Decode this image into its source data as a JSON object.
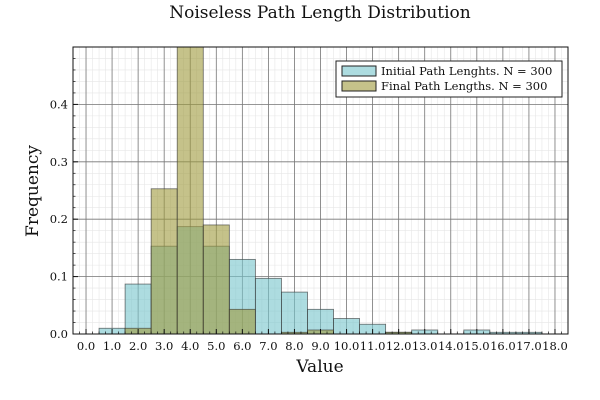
{
  "chart_data": {
    "type": "histogram",
    "title": "Noiseless Path Length Distribution",
    "xlabel": "Value",
    "ylabel": "Frequency",
    "xlim": [
      -0.5,
      18.5
    ],
    "ylim": [
      0,
      0.5
    ],
    "x_ticks": [
      0,
      1,
      2,
      3,
      4,
      5,
      6,
      7,
      8,
      9,
      10,
      11,
      12,
      13,
      14,
      15,
      16,
      17,
      18
    ],
    "x_tick_labels": [
      "0.0",
      "1.0",
      "2.0",
      "3.0",
      "4.0",
      "5.0",
      "6.0",
      "7.0",
      "8.0",
      "9.0",
      "10.0",
      "11.0",
      "12.0",
      "13.0",
      "14.0",
      "15.0",
      "16.0",
      "17.0",
      "18.0"
    ],
    "y_ticks": [
      0,
      0.1,
      0.2,
      0.3,
      0.4
    ],
    "y_tick_labels": [
      "0.0",
      "0.1",
      "0.2",
      "0.3",
      "0.4"
    ],
    "bin_width": 1,
    "grid": true,
    "legend_position": "top-right",
    "series": [
      {
        "name": "Initial Path Lenghts. N = 300",
        "color": "#77c4cc",
        "bins": [
          {
            "start": 0.5,
            "value": 0.01
          },
          {
            "start": 1.5,
            "value": 0.087
          },
          {
            "start": 2.5,
            "value": 0.153
          },
          {
            "start": 3.5,
            "value": 0.187
          },
          {
            "start": 4.5,
            "value": 0.153
          },
          {
            "start": 5.5,
            "value": 0.13
          },
          {
            "start": 6.5,
            "value": 0.097
          },
          {
            "start": 7.5,
            "value": 0.073
          },
          {
            "start": 8.5,
            "value": 0.043
          },
          {
            "start": 9.5,
            "value": 0.027
          },
          {
            "start": 10.5,
            "value": 0.017
          },
          {
            "start": 11.5,
            "value": 0.003
          },
          {
            "start": 12.5,
            "value": 0.007
          },
          {
            "start": 13.5,
            "value": 0.0
          },
          {
            "start": 14.5,
            "value": 0.007
          },
          {
            "start": 15.5,
            "value": 0.003
          },
          {
            "start": 16.5,
            "value": 0.003
          }
        ]
      },
      {
        "name": "Final Path Lengths. N = 300",
        "color": "#9e9a3c",
        "bins": [
          {
            "start": 1.5,
            "value": 0.01
          },
          {
            "start": 2.5,
            "value": 0.253
          },
          {
            "start": 3.5,
            "value": 0.5
          },
          {
            "start": 4.5,
            "value": 0.19
          },
          {
            "start": 5.5,
            "value": 0.043
          },
          {
            "start": 7.5,
            "value": 0.003
          },
          {
            "start": 8.5,
            "value": 0.007
          },
          {
            "start": 11.5,
            "value": 0.003
          }
        ]
      }
    ]
  }
}
